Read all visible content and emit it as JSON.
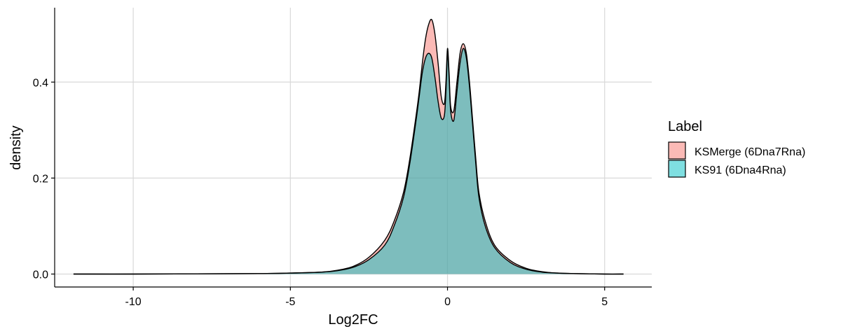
{
  "chart_data": {
    "type": "area",
    "subtype": "density",
    "title": "",
    "xlabel": "Log2FC",
    "ylabel": "density",
    "xlim": [
      -12.5,
      6.5
    ],
    "ylim": [
      -0.027,
      0.555
    ],
    "x_ticks": [
      -10,
      -5,
      0,
      5
    ],
    "x_tick_labels": [
      "-10",
      "-5",
      "0",
      "5"
    ],
    "y_ticks": [
      0.0,
      0.2,
      0.4
    ],
    "y_tick_labels": [
      "0.0",
      "0.2",
      "0.4"
    ],
    "grid": true,
    "legend": {
      "title": "Label",
      "position": "right",
      "entries": [
        "KSMerge (6Dna7Rna)",
        "KS91 (6Dna4Rna)"
      ]
    },
    "series": [
      {
        "name": "KSMerge (6Dna7Rna)",
        "color": "#F8766D",
        "x": [
          -11.9,
          -10,
          -8,
          -6,
          -5,
          -4,
          -3.5,
          -3,
          -2.5,
          -2,
          -1.7,
          -1.4,
          -1.2,
          -1.0,
          -0.9,
          -0.8,
          -0.7,
          -0.6,
          -0.5,
          -0.4,
          -0.3,
          -0.2,
          -0.1,
          -0.05,
          0.0,
          0.05,
          0.1,
          0.2,
          0.3,
          0.4,
          0.5,
          0.6,
          0.7,
          0.8,
          0.9,
          1.0,
          1.2,
          1.5,
          2.0,
          2.5,
          3.0,
          3.5,
          4.0,
          5.0,
          5.6
        ],
        "y": [
          0.0,
          0.0,
          0.0005,
          0.001,
          0.002,
          0.004,
          0.008,
          0.016,
          0.035,
          0.07,
          0.11,
          0.17,
          0.24,
          0.33,
          0.38,
          0.44,
          0.49,
          0.52,
          0.53,
          0.5,
          0.44,
          0.37,
          0.355,
          0.4,
          0.47,
          0.42,
          0.35,
          0.34,
          0.4,
          0.46,
          0.48,
          0.46,
          0.4,
          0.32,
          0.24,
          0.17,
          0.11,
          0.06,
          0.028,
          0.012,
          0.005,
          0.002,
          0.001,
          0.0,
          0.0
        ]
      },
      {
        "name": "KS91 (6Dna4Rna)",
        "color": "#00BFC4",
        "x": [
          -11.9,
          -10,
          -8,
          -6,
          -5,
          -4,
          -3.5,
          -3,
          -2.5,
          -2,
          -1.7,
          -1.4,
          -1.2,
          -1.0,
          -0.9,
          -0.8,
          -0.7,
          -0.6,
          -0.5,
          -0.4,
          -0.3,
          -0.2,
          -0.1,
          -0.05,
          0.0,
          0.05,
          0.1,
          0.2,
          0.3,
          0.4,
          0.5,
          0.6,
          0.7,
          0.8,
          0.9,
          1.0,
          1.2,
          1.5,
          2.0,
          2.5,
          3.0,
          3.5,
          4.0,
          5.0,
          5.6
        ],
        "y": [
          0.0,
          0.0,
          0.0004,
          0.001,
          0.002,
          0.004,
          0.007,
          0.014,
          0.03,
          0.06,
          0.1,
          0.16,
          0.23,
          0.32,
          0.37,
          0.42,
          0.45,
          0.46,
          0.45,
          0.41,
          0.36,
          0.325,
          0.33,
          0.38,
          0.46,
          0.41,
          0.34,
          0.32,
          0.38,
          0.44,
          0.47,
          0.45,
          0.39,
          0.31,
          0.23,
          0.16,
          0.1,
          0.055,
          0.024,
          0.01,
          0.004,
          0.002,
          0.001,
          0.0,
          0.0
        ]
      }
    ]
  }
}
